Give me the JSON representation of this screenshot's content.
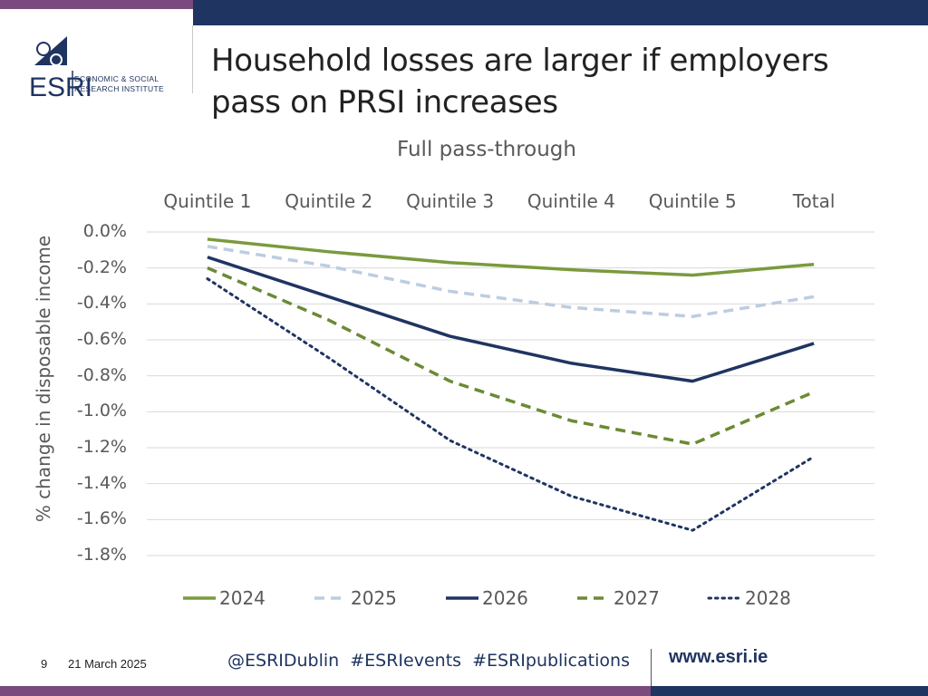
{
  "header": {
    "title": "Household losses are larger if employers pass on PRSI increases",
    "logo": {
      "wordmark": "ESRI",
      "line1": "ECONOMIC & SOCIAL",
      "line2": "RESEARCH INSTITUTE"
    }
  },
  "chart_data": {
    "type": "line",
    "title": "Full pass-through",
    "categories": [
      "Quintile 1",
      "Quintile 2",
      "Quintile 3",
      "Quintile 4",
      "Quintile 5",
      "Total"
    ],
    "ylabel": "% change in disposable income",
    "xlabel": "",
    "ylim": [
      -1.8,
      0.0
    ],
    "yticks": [
      "0.0%",
      "-0.2%",
      "-0.4%",
      "-0.6%",
      "-0.8%",
      "-1.0%",
      "-1.2%",
      "-1.4%",
      "-1.6%",
      "-1.8%"
    ],
    "ytick_values": [
      0.0,
      -0.2,
      -0.4,
      -0.6,
      -0.8,
      -1.0,
      -1.2,
      -1.4,
      -1.6,
      -1.8
    ],
    "grid": true,
    "legend_position": "bottom",
    "category_axis_position": "top",
    "series": [
      {
        "name": "2024",
        "values": [
          -0.04,
          -0.11,
          -0.17,
          -0.21,
          -0.24,
          -0.18
        ],
        "color": "#7a9a3d",
        "style": "solid"
      },
      {
        "name": "2025",
        "values": [
          -0.08,
          -0.19,
          -0.33,
          -0.42,
          -0.47,
          -0.36
        ],
        "color": "#bccde0",
        "style": "dashed"
      },
      {
        "name": "2026",
        "values": [
          -0.14,
          -0.36,
          -0.58,
          -0.73,
          -0.83,
          -0.62
        ],
        "color": "#1f3461",
        "style": "solid"
      },
      {
        "name": "2027",
        "values": [
          -0.2,
          -0.49,
          -0.83,
          -1.05,
          -1.18,
          -0.89
        ],
        "color": "#6b8a35",
        "style": "dashed"
      },
      {
        "name": "2028",
        "values": [
          -0.26,
          -0.7,
          -1.16,
          -1.47,
          -1.66,
          -1.25
        ],
        "color": "#1f3461",
        "style": "dotted"
      }
    ]
  },
  "footer": {
    "page_number": "9",
    "date": "21 March 2025",
    "social": "@ESRIDublin #ESRIevents #ESRIpublications",
    "url": "www.esri.ie"
  }
}
